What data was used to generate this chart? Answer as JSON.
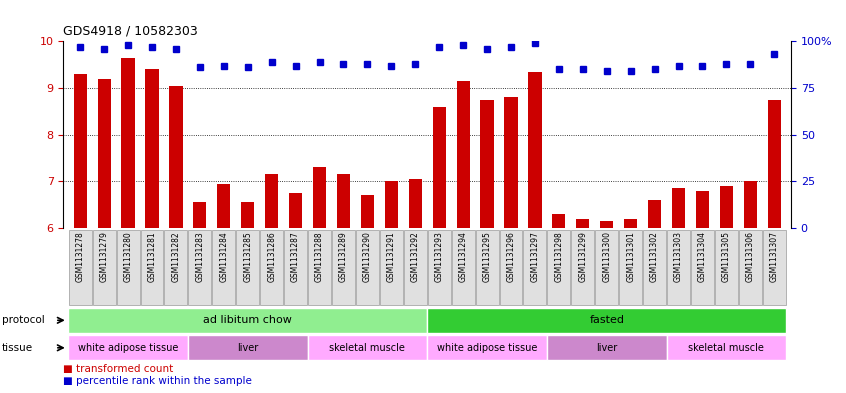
{
  "title": "GDS4918 / 10582303",
  "samples": [
    "GSM1131278",
    "GSM1131279",
    "GSM1131280",
    "GSM1131281",
    "GSM1131282",
    "GSM1131283",
    "GSM1131284",
    "GSM1131285",
    "GSM1131286",
    "GSM1131287",
    "GSM1131288",
    "GSM1131289",
    "GSM1131290",
    "GSM1131291",
    "GSM1131292",
    "GSM1131293",
    "GSM1131294",
    "GSM1131295",
    "GSM1131296",
    "GSM1131297",
    "GSM1131298",
    "GSM1131299",
    "GSM1131300",
    "GSM1131301",
    "GSM1131302",
    "GSM1131303",
    "GSM1131304",
    "GSM1131305",
    "GSM1131306",
    "GSM1131307"
  ],
  "bar_values": [
    9.3,
    9.2,
    9.65,
    9.4,
    9.05,
    6.55,
    6.95,
    6.55,
    7.15,
    6.75,
    7.3,
    7.15,
    6.7,
    7.0,
    7.05,
    8.6,
    9.15,
    8.75,
    8.8,
    9.35,
    6.3,
    6.2,
    6.15,
    6.2,
    6.6,
    6.85,
    6.8,
    6.9,
    7.0,
    8.75
  ],
  "percentile_values": [
    97,
    96,
    98,
    97,
    96,
    86,
    87,
    86,
    89,
    87,
    89,
    88,
    88,
    87,
    88,
    97,
    98,
    96,
    97,
    99,
    85,
    85,
    84,
    84,
    85,
    87,
    87,
    88,
    88,
    93
  ],
  "ylim_left": [
    6,
    10
  ],
  "ylim_right": [
    0,
    100
  ],
  "yticks_left": [
    6,
    7,
    8,
    9,
    10
  ],
  "yticks_right": [
    0,
    25,
    50,
    75,
    100
  ],
  "ytick_labels_right": [
    "0",
    "25",
    "50",
    "75",
    "100%"
  ],
  "bar_color": "#cc0000",
  "dot_color": "#0000cc",
  "bar_bottom": 6,
  "protocol_groups": [
    {
      "text": "ad libitum chow",
      "start": 0,
      "end": 14,
      "color": "#90ee90"
    },
    {
      "text": "fasted",
      "start": 15,
      "end": 29,
      "color": "#33cc33"
    }
  ],
  "tissue_groups": [
    {
      "text": "white adipose tissue",
      "start": 0,
      "end": 4,
      "color": "#ffaaff"
    },
    {
      "text": "liver",
      "start": 5,
      "end": 9,
      "color": "#cc88cc"
    },
    {
      "text": "skeletal muscle",
      "start": 10,
      "end": 14,
      "color": "#ffaaff"
    },
    {
      "text": "white adipose tissue",
      "start": 15,
      "end": 19,
      "color": "#ffaaff"
    },
    {
      "text": "liver",
      "start": 20,
      "end": 24,
      "color": "#cc88cc"
    },
    {
      "text": "skeletal muscle",
      "start": 25,
      "end": 29,
      "color": "#ffaaff"
    }
  ],
  "xticklabel_bg": "#e0e0e0",
  "xticklabel_edge": "#999999"
}
